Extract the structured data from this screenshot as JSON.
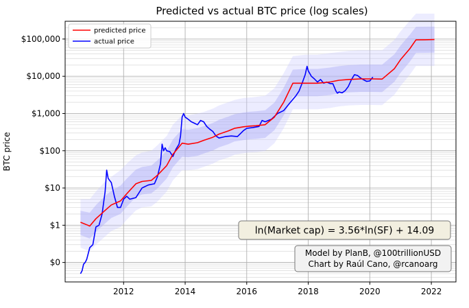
{
  "chart_data": {
    "type": "line",
    "title": "Predicted vs actual BTC price (log scales)",
    "xlabel": "",
    "ylabel": "BTC price",
    "y_scale": "log",
    "xlim": [
      2010.1,
      2022.8
    ],
    "ylim": [
      0.03,
      300000
    ],
    "x_ticks": [
      2012,
      2014,
      2016,
      2018,
      2020,
      2022
    ],
    "x_tick_labels": [
      "2012",
      "2014",
      "2016",
      "2018",
      "2020",
      "2022"
    ],
    "y_ticks": [
      0.1,
      1,
      10,
      100,
      1000,
      10000,
      100000
    ],
    "y_tick_labels": [
      "$0",
      "$1",
      "$10",
      "$100",
      "$1,000",
      "$10,000",
      "$100,000"
    ],
    "grid": true,
    "legend_position": "top-left",
    "annotations": [
      "ln(Market cap) = 3.56*ln(SF) + 14.09",
      "Model by PlanB, @100trillionUSD",
      "Chart by Raúl Cano, @rcanoarg"
    ],
    "series": [
      {
        "name": "predicted price",
        "color": "#ff0000",
        "x": [
          2010.6,
          2010.9,
          2011.1,
          2011.4,
          2011.6,
          2011.9,
          2012.1,
          2012.4,
          2012.6,
          2012.9,
          2013.1,
          2013.4,
          2013.6,
          2013.9,
          2014.1,
          2014.4,
          2014.6,
          2014.9,
          2015.1,
          2015.4,
          2015.6,
          2015.9,
          2016.1,
          2016.3,
          2016.6,
          2016.9,
          2017.2,
          2017.5,
          2017.9,
          2018.3,
          2018.7,
          2019.0,
          2019.3,
          2019.7,
          2020.1,
          2020.4,
          2020.8,
          2021.0,
          2021.3,
          2021.5,
          2021.8,
          2022.1
        ],
        "y": [
          1.2,
          0.95,
          1.5,
          2.5,
          3.5,
          4.5,
          7,
          13,
          15,
          16,
          22,
          40,
          80,
          160,
          150,
          165,
          190,
          230,
          280,
          340,
          400,
          440,
          460,
          470,
          500,
          800,
          2000,
          6500,
          6500,
          6500,
          7000,
          7800,
          8200,
          8500,
          8500,
          8400,
          16000,
          28000,
          55000,
          95000,
          96000,
          97000
        ],
        "band_upper": [
          5,
          5,
          8,
          15,
          20,
          30,
          45,
          75,
          90,
          100,
          140,
          250,
          500,
          900,
          900,
          1000,
          1100,
          1350,
          1650,
          2000,
          2300,
          2600,
          2700,
          2800,
          3000,
          4800,
          12000,
          35000,
          38000,
          38000,
          42000,
          45000,
          48000,
          50000,
          50000,
          50000,
          95000,
          160000,
          310000,
          480000,
          480000,
          480000
        ],
        "band_lower": [
          0.25,
          0.2,
          0.3,
          0.5,
          0.7,
          0.9,
          1.4,
          2.5,
          3,
          3.2,
          4.3,
          8,
          16,
          30,
          30,
          32,
          37,
          45,
          55,
          66,
          78,
          86,
          90,
          92,
          98,
          160,
          400,
          1300,
          1300,
          1300,
          1400,
          1550,
          1650,
          1700,
          1700,
          1680,
          3200,
          5500,
          11000,
          19000,
          19000,
          19000
        ]
      },
      {
        "name": "actual price",
        "color": "#0000ff",
        "x": [
          2010.6,
          2010.65,
          2010.7,
          2010.75,
          2010.8,
          2010.9,
          2011.0,
          2011.1,
          2011.2,
          2011.3,
          2011.4,
          2011.45,
          2011.5,
          2011.6,
          2011.7,
          2011.8,
          2011.9,
          2012.0,
          2012.1,
          2012.2,
          2012.4,
          2012.6,
          2012.8,
          2013.0,
          2013.1,
          2013.2,
          2013.25,
          2013.3,
          2013.35,
          2013.4,
          2013.5,
          2013.6,
          2013.7,
          2013.8,
          2013.85,
          2013.9,
          2013.95,
          2014.0,
          2014.1,
          2014.2,
          2014.3,
          2014.4,
          2014.5,
          2014.6,
          2014.7,
          2014.8,
          2014.9,
          2015.0,
          2015.1,
          2015.3,
          2015.5,
          2015.7,
          2015.9,
          2016.0,
          2016.2,
          2016.4,
          2016.5,
          2016.6,
          2016.8,
          2017.0,
          2017.2,
          2017.4,
          2017.6,
          2017.7,
          2017.8,
          2017.9,
          2017.96,
          2018.0,
          2018.1,
          2018.2,
          2018.3,
          2018.4,
          2018.5,
          2018.6,
          2018.7,
          2018.8,
          2018.9,
          2018.95,
          2019.0,
          2019.1,
          2019.2,
          2019.3,
          2019.4,
          2019.5,
          2019.6,
          2019.7,
          2019.8,
          2019.9,
          2020.0,
          2020.1
        ],
        "y": [
          0.05,
          0.06,
          0.09,
          0.1,
          0.12,
          0.25,
          0.3,
          0.9,
          1,
          2,
          8,
          30,
          18,
          14,
          6,
          3,
          3,
          5,
          6,
          5,
          5.5,
          10,
          12,
          13,
          20,
          45,
          150,
          100,
          120,
          100,
          95,
          70,
          110,
          150,
          250,
          800,
          1000,
          800,
          700,
          600,
          550,
          500,
          650,
          600,
          450,
          380,
          330,
          250,
          220,
          240,
          250,
          240,
          350,
          400,
          420,
          450,
          650,
          600,
          700,
          1000,
          1200,
          1900,
          3000,
          4000,
          6500,
          11000,
          18500,
          14000,
          10000,
          8500,
          7000,
          8200,
          6500,
          7000,
          6400,
          6300,
          4000,
          3500,
          3800,
          3600,
          4100,
          5300,
          8000,
          11000,
          10500,
          9000,
          8000,
          7300,
          7500,
          9500
        ]
      }
    ]
  }
}
